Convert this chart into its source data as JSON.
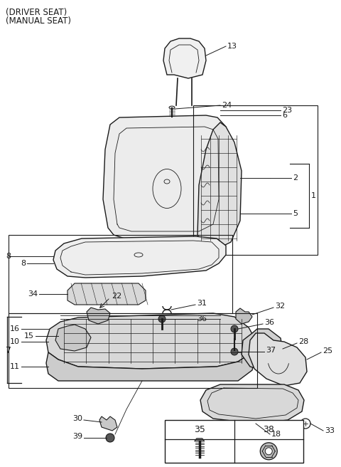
{
  "title_line1": "(DRIVER SEAT)",
  "title_line2": "(MANUAL SEAT)",
  "bg_color": "#ffffff",
  "line_color": "#1a1a1a",
  "gray_fill": "#e8e8e8",
  "dark_gray": "#aaaaaa",
  "font_size_title": 8.5,
  "font_size_label": 8,
  "fig_w": 4.8,
  "fig_h": 6.56,
  "dpi": 100
}
